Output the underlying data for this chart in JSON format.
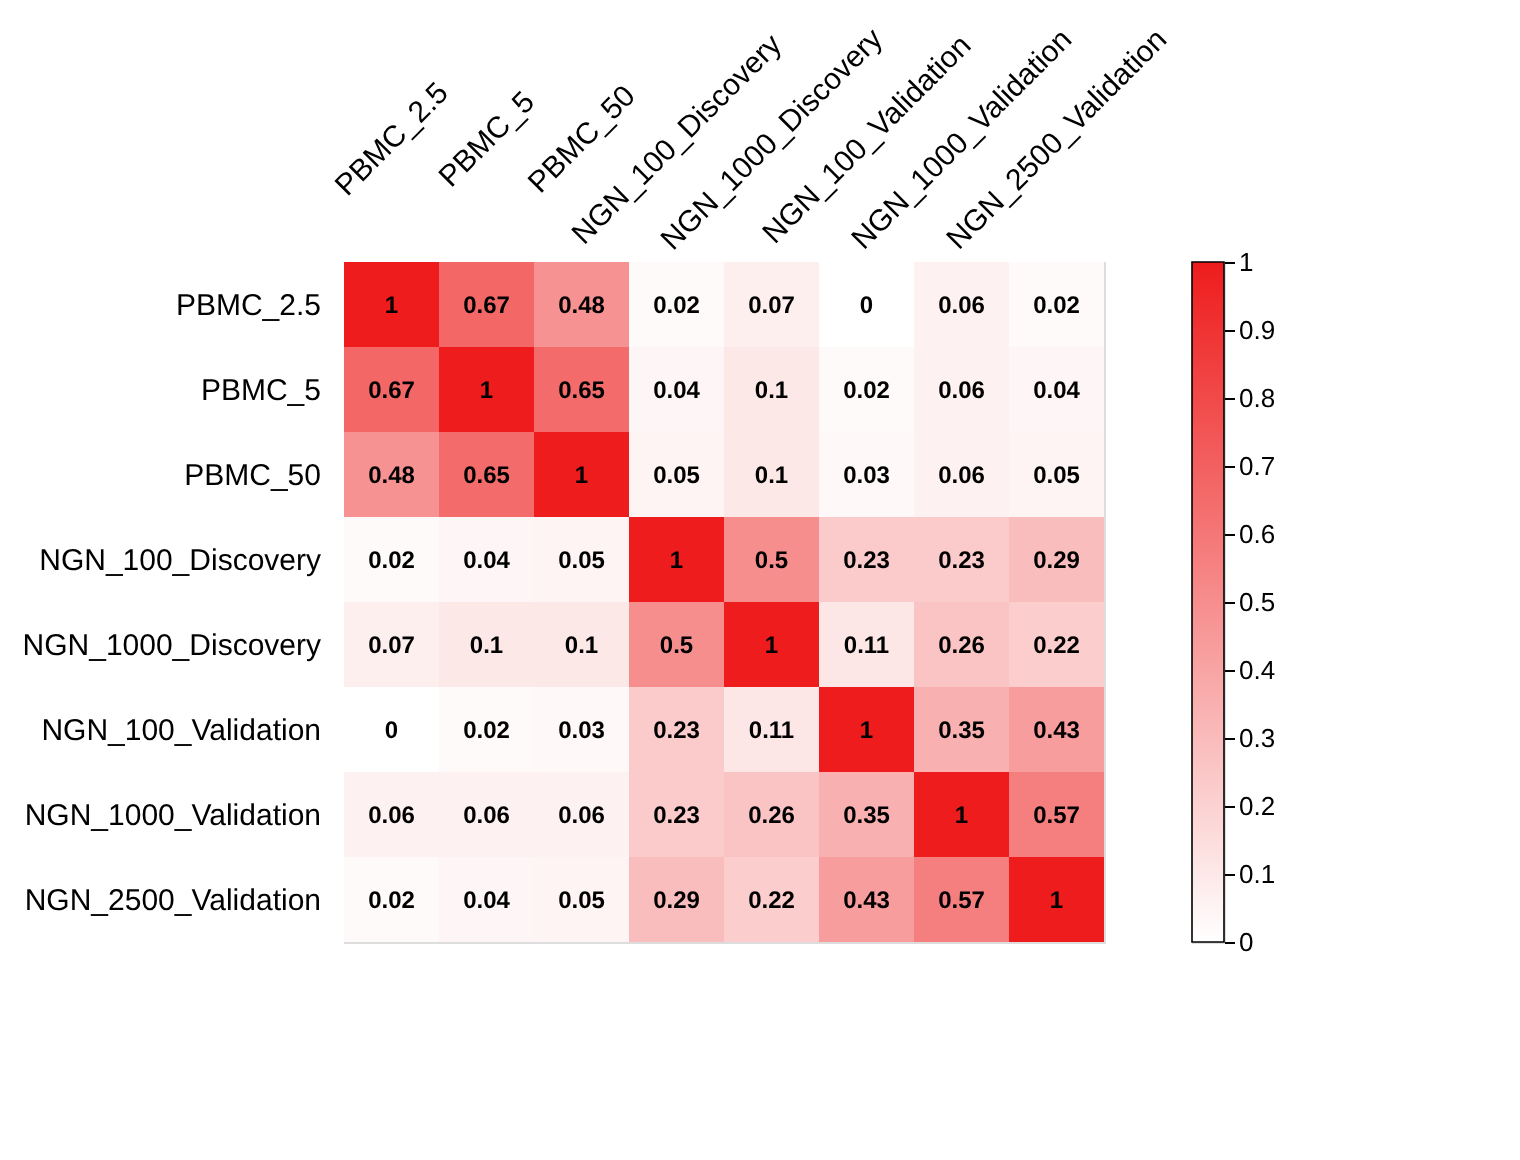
{
  "chart_data": {
    "type": "heatmap",
    "categories": [
      "PBMC_2.5",
      "PBMC_5",
      "PBMC_50",
      "NGN_100_Discovery",
      "NGN_1000_Discovery",
      "NGN_100_Validation",
      "NGN_1000_Validation",
      "NGN_2500_Validation"
    ],
    "y_categories": [
      "PBMC_2.5",
      "PBMC_5",
      "PBMC_50",
      "NGN_100_Discovery",
      "NGN_1000_Discovery",
      "NGN_100_Validation",
      "NGN_1000_Validation",
      "NGN_2500_Validation"
    ],
    "cells": [
      [
        1,
        0.67,
        0.48,
        0.02,
        0.07,
        0,
        0.06,
        0.02
      ],
      [
        0.67,
        1,
        0.65,
        0.04,
        0.1,
        0.02,
        0.06,
        0.04
      ],
      [
        0.48,
        0.65,
        1,
        0.05,
        0.1,
        0.03,
        0.06,
        0.05
      ],
      [
        0.02,
        0.04,
        0.05,
        1,
        0.5,
        0.23,
        0.23,
        0.29
      ],
      [
        0.07,
        0.1,
        0.1,
        0.5,
        1,
        0.11,
        0.26,
        0.22
      ],
      [
        0,
        0.02,
        0.03,
        0.23,
        0.11,
        1,
        0.35,
        0.43
      ],
      [
        0.06,
        0.06,
        0.06,
        0.23,
        0.26,
        0.35,
        1,
        0.57
      ],
      [
        0.02,
        0.04,
        0.05,
        0.29,
        0.22,
        0.43,
        0.57,
        1
      ]
    ],
    "clim": [
      0,
      1
    ],
    "cticks": [
      0,
      0.1,
      0.2,
      0.3,
      0.4,
      0.5,
      0.6,
      0.7,
      0.8,
      0.9,
      1
    ],
    "colors": [
      "#ffffff",
      "#ee1c1c"
    ],
    "data_labels": true,
    "grid": false
  }
}
